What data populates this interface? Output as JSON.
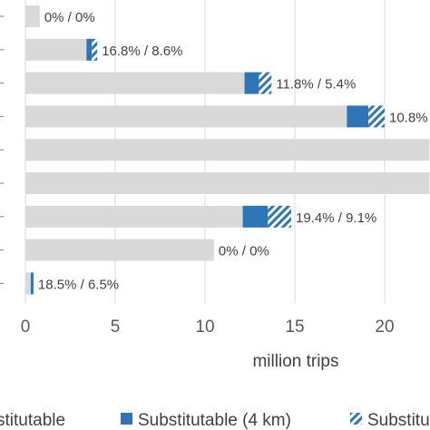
{
  "chart_data": {
    "type": "bar",
    "orientation": "horizontal",
    "stacked": true,
    "xlabel": "million trips",
    "xlim": [
      0,
      22.5
    ],
    "xticks": [
      0,
      5,
      10,
      15,
      20
    ],
    "grid": true,
    "legend_position": "bottom",
    "series": [
      {
        "name": "…stitutable",
        "color": "#d9d9d9",
        "pattern": "solid",
        "values": [
          0.8,
          3.4,
          12.2,
          17.9,
          22.5,
          22.5,
          12.1,
          10.5,
          0.3
        ]
      },
      {
        "name": "Substitutable (4 km)",
        "color": "#2e75b6",
        "pattern": "solid",
        "values": [
          0,
          0.3,
          0.8,
          1.2,
          0,
          0,
          1.4,
          0,
          0.15
        ]
      },
      {
        "name": "Substitu…",
        "color": "#2e75b6",
        "pattern": "hatched",
        "values": [
          0,
          0.3,
          0.7,
          0.9,
          0,
          0,
          1.3,
          0,
          0
        ]
      }
    ],
    "data_labels": [
      "0% / 0%",
      "16.8% / 8.6%",
      "11.8% / 5.4%",
      "10.8%",
      "",
      "",
      "19.4% / 9.1%",
      "0% / 0%",
      "18.5% / 6.5%"
    ]
  }
}
